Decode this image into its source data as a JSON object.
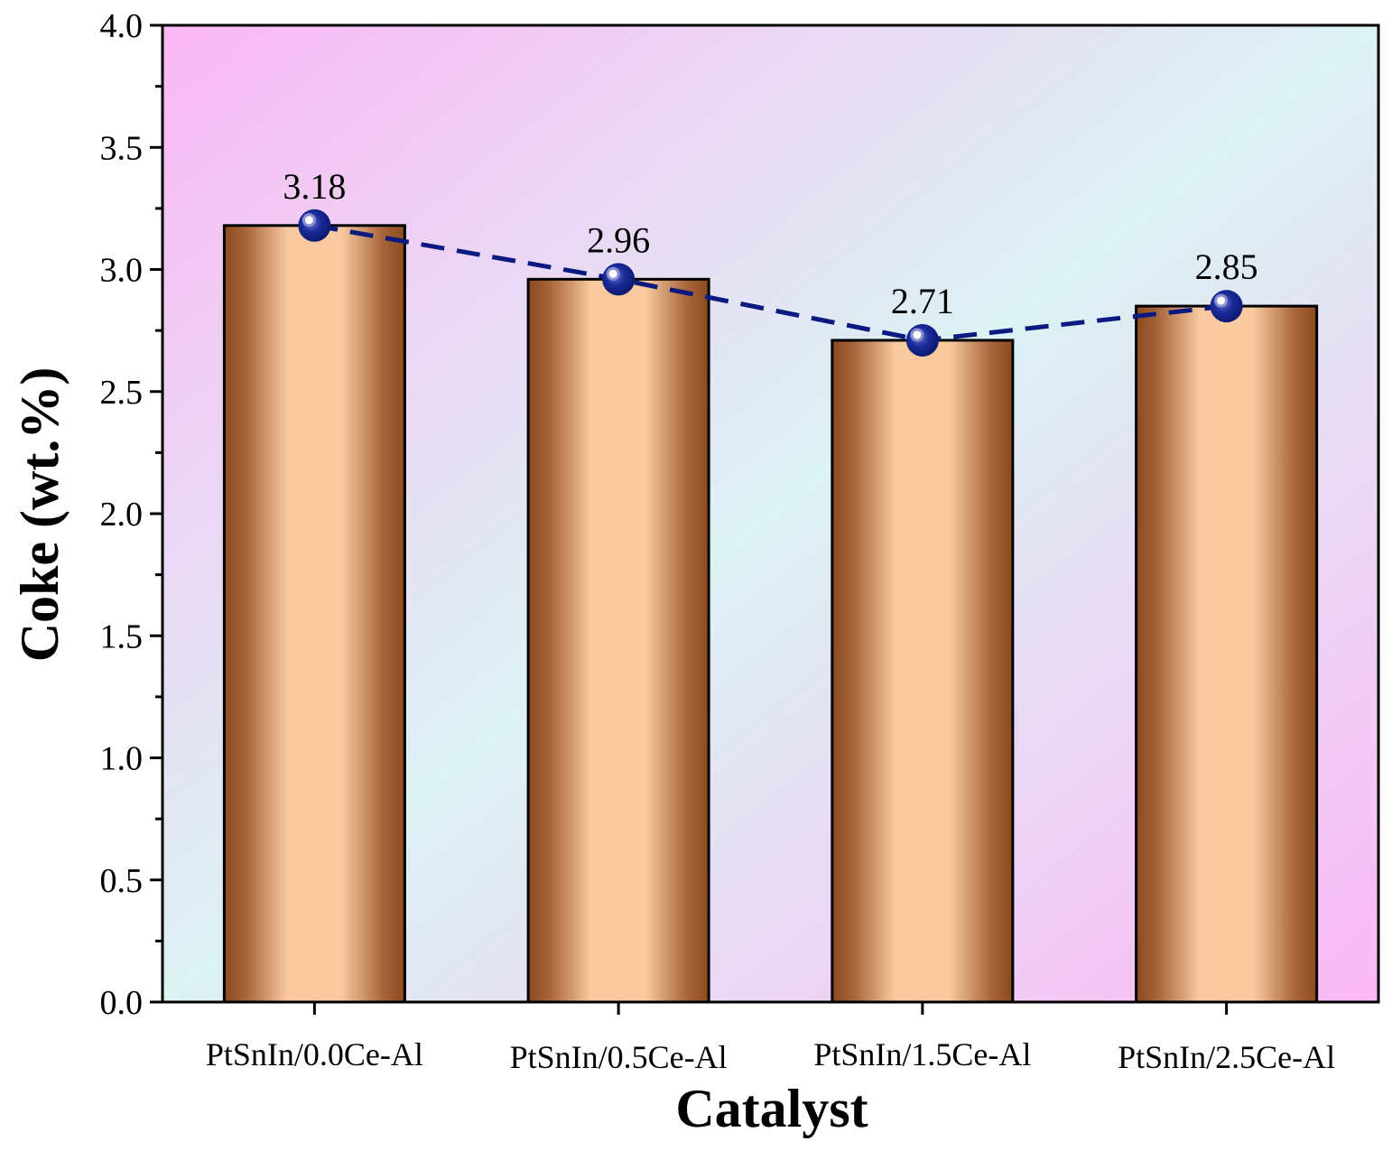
{
  "chart_data": {
    "type": "bar",
    "title": "",
    "xlabel": "Catalyst",
    "ylabel": "Coke (wt.%)",
    "categories": [
      "PtSnIn/0.0Ce-Al",
      "PtSnIn/0.5Ce-Al",
      "PtSnIn/1.5Ce-Al",
      "PtSnIn/2.5Ce-Al"
    ],
    "values": [
      3.18,
      2.96,
      2.71,
      2.85
    ],
    "data_labels": [
      "3.18",
      "2.96",
      "2.71",
      "2.85"
    ],
    "ylim": [
      0,
      4.0
    ],
    "yticks": [
      "0.0",
      "0.5",
      "1.0",
      "1.5",
      "2.0",
      "2.5",
      "3.0",
      "3.5",
      "4.0"
    ],
    "overlay": "dashed trend line with markers through bar tops",
    "grid": false,
    "colors": {
      "bar_edge": "#8b4a1e",
      "bar_center": "#f9c9a0",
      "trend_line": "#0b1a80",
      "marker": "#0b1a80",
      "background_pink": "#fbb8f5",
      "background_cyan": "#dcf2f3"
    }
  }
}
